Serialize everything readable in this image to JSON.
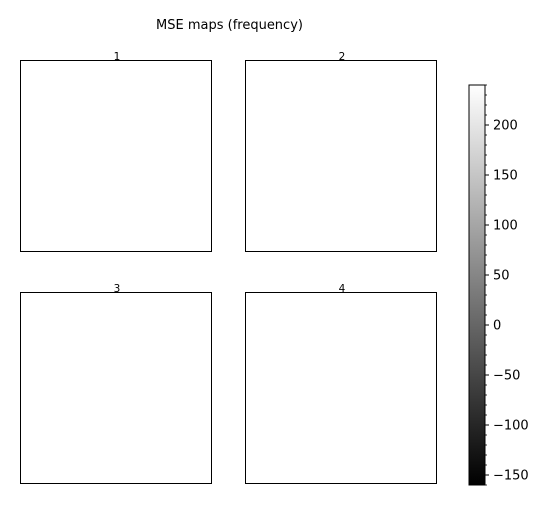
{
  "chart_data": {
    "type": "heatmap",
    "title": "MSE maps (frequency)",
    "colormap": "gray",
    "panels": [
      {
        "title": "1"
      },
      {
        "title": "2"
      },
      {
        "title": "3"
      },
      {
        "title": "4"
      }
    ],
    "colorbar": {
      "vmin": -160,
      "vmax": 240,
      "major_ticks": [
        -150,
        -100,
        -50,
        0,
        50,
        100,
        150,
        200
      ],
      "major_tick_labels": [
        "−150",
        "−100",
        "−50",
        "0",
        "50",
        "100",
        "150",
        "200"
      ],
      "minor_tick_step": 10,
      "color_low": "#000000",
      "color_high": "#ffffff"
    }
  }
}
